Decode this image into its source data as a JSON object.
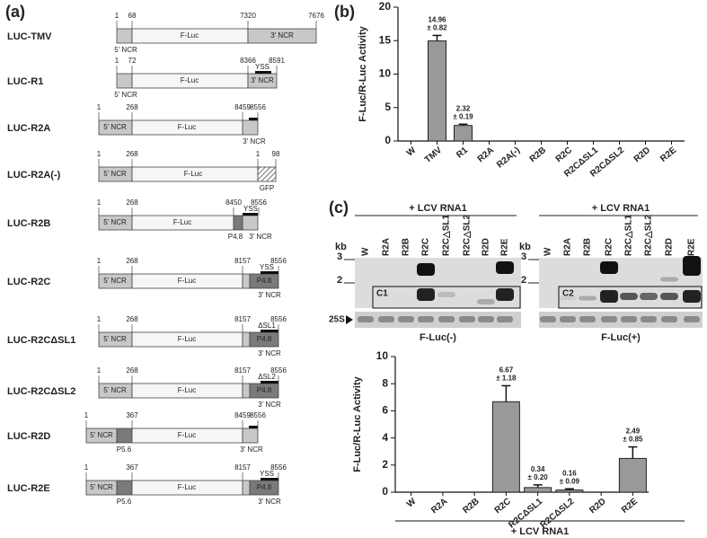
{
  "panels": [
    "(a)",
    "(b)",
    "(c)"
  ],
  "constructs": [
    {
      "name": "LUC-TMV",
      "numbers": [
        "1",
        "68",
        "7320",
        "7676"
      ],
      "regions": [
        "5' NCR",
        "F-Luc",
        "3' NCR"
      ]
    },
    {
      "name": "LUC-R1",
      "numbers": [
        "1",
        "72",
        "8366",
        "8591"
      ],
      "regions": [
        "5' NCR",
        "F-Luc",
        "3' NCR",
        "YSS"
      ]
    },
    {
      "name": "LUC-R2A",
      "numbers": [
        "1",
        "268",
        "8459",
        "8556"
      ],
      "regions": [
        "5' NCR",
        "F-Luc",
        "3' NCR"
      ]
    },
    {
      "name": "LUC-R2A(-)",
      "numbers": [
        "1",
        "268",
        "1",
        "98"
      ],
      "regions": [
        "5' NCR",
        "F-Luc",
        "GFP"
      ]
    },
    {
      "name": "LUC-R2B",
      "numbers": [
        "1",
        "268",
        "8450",
        "8556"
      ],
      "regions": [
        "5' NCR",
        "F-Luc",
        "P4.8",
        "3' NCR",
        "YSS"
      ]
    },
    {
      "name": "LUC-R2C",
      "numbers": [
        "1",
        "268",
        "8157",
        "8556"
      ],
      "regions": [
        "5' NCR",
        "F-Luc",
        "P4.8",
        "3' NCR",
        "YSS"
      ]
    },
    {
      "name": "LUC-R2CΔSL1",
      "numbers": [
        "1",
        "268",
        "8157",
        "8556"
      ],
      "regions": [
        "5' NCR",
        "F-Luc",
        "P4.8",
        "3' NCR",
        "ΔSL1"
      ]
    },
    {
      "name": "LUC-R2CΔSL2",
      "numbers": [
        "1",
        "268",
        "8157",
        "8556"
      ],
      "regions": [
        "5' NCR",
        "F-Luc",
        "P4.8",
        "3' NCR",
        "ΔSL2"
      ]
    },
    {
      "name": "LUC-R2D",
      "numbers": [
        "1",
        "367",
        "8459",
        "8556"
      ],
      "regions": [
        "5' NCR",
        "P5.6",
        "F-Luc",
        "3' NCR"
      ]
    },
    {
      "name": "LUC-R2E",
      "numbers": [
        "1",
        "367",
        "8157",
        "8556"
      ],
      "regions": [
        "5' NCR",
        "P5.6",
        "F-Luc",
        "P4.8",
        "3' NCR",
        "YSS"
      ]
    }
  ],
  "gel_axis": {
    "unit": "kb",
    "marks": [
      "3",
      "2"
    ],
    "loading": "25S"
  },
  "gels": [
    {
      "title": "+ LCV RNA1",
      "lanes": [
        "W",
        "R2A",
        "R2B",
        "R2C",
        "R2C△SL1",
        "R2C△SL2",
        "R2D",
        "R2E"
      ],
      "box": "C1",
      "caption": "F-Luc(-)"
    },
    {
      "title": "+ LCV RNA1",
      "lanes": [
        "W",
        "R2A",
        "R2B",
        "R2C",
        "R2C△SL1",
        "R2C△SL2",
        "R2D",
        "R2E"
      ],
      "box": "C2",
      "caption": "F-Luc(+)"
    }
  ],
  "chart_data": [
    {
      "type": "bar",
      "y_label": "F-Luc/R-Luc Activity",
      "color": "#999999",
      "categories": [
        "W",
        "TMV",
        "R1",
        "R2A",
        "R2A(-)",
        "R2B",
        "R2C",
        "R2CΔSL1",
        "R2CΔSL2",
        "R2D",
        "R2E"
      ],
      "values": [
        0,
        14.96,
        2.32,
        0,
        0,
        0,
        0,
        0,
        0,
        0,
        0
      ],
      "errors": [
        null,
        0.82,
        0.19,
        null,
        null,
        null,
        null,
        null,
        null,
        null,
        null
      ],
      "value_labels": [
        null,
        "14.96",
        "2.32",
        null,
        null,
        null,
        null,
        null,
        null,
        null,
        null
      ],
      "error_labels": [
        null,
        "± 0.82",
        "± 0.19",
        null,
        null,
        null,
        null,
        null,
        null,
        null,
        null
      ],
      "ylim": [
        0,
        20
      ],
      "yticks": [
        0,
        5,
        10,
        15,
        20
      ]
    },
    {
      "type": "bar",
      "y_label": "F-Luc/R-Luc Activity",
      "x_label": "+ LCV RNA1",
      "color": "#999999",
      "categories": [
        "W",
        "R2A",
        "R2B",
        "R2C",
        "R2CΔSL1",
        "R2CΔSL2",
        "R2D",
        "R2E"
      ],
      "values": [
        0,
        0,
        0,
        6.67,
        0.34,
        0.16,
        0,
        2.49
      ],
      "errors": [
        null,
        null,
        null,
        1.18,
        0.2,
        0.09,
        null,
        0.85
      ],
      "value_labels": [
        null,
        null,
        null,
        "6.67",
        "0.34",
        "0.16",
        null,
        "2.49"
      ],
      "error_labels": [
        null,
        null,
        null,
        "± 1.18",
        "± 0.20",
        "± 0.09",
        null,
        "± 0.85"
      ],
      "ylim": [
        0,
        10
      ],
      "yticks": [
        0,
        2,
        4,
        6,
        8,
        10
      ]
    }
  ]
}
